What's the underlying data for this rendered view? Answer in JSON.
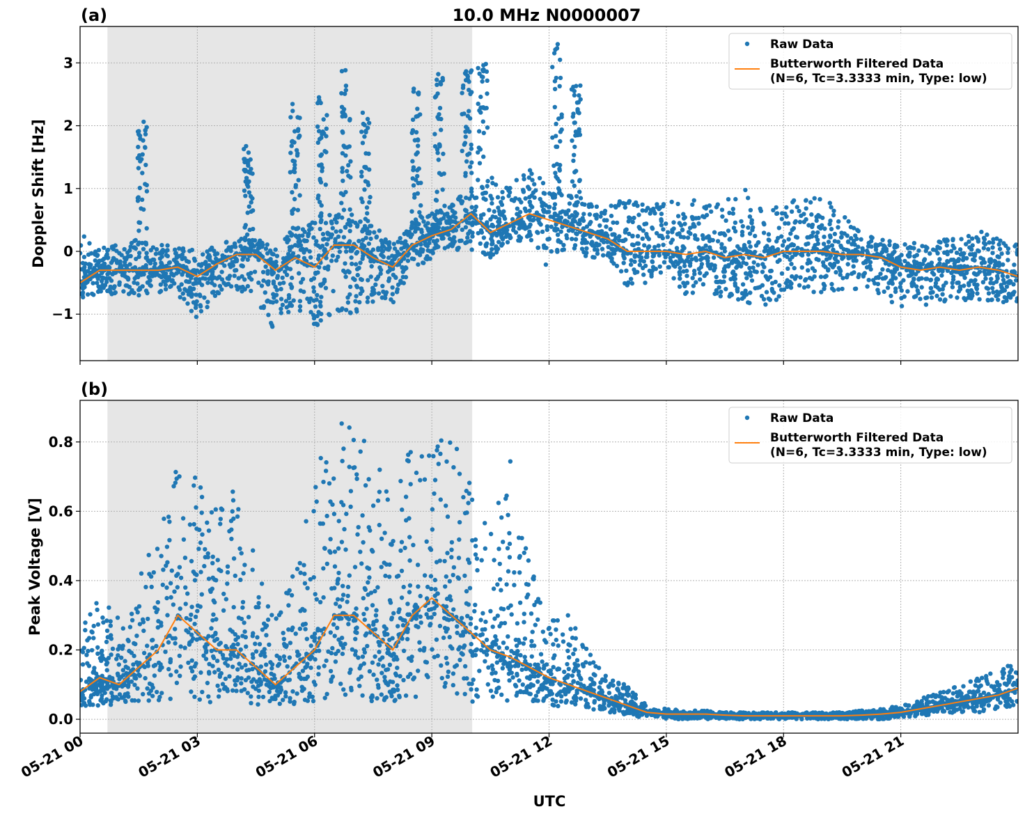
{
  "chart_data": [
    {
      "type": "scatter",
      "panel_label": "(a)",
      "title": "10.0 MHz N0000007",
      "xlabel": "",
      "ylabel": "Doppler Shift [Hz]",
      "xlim_hours_utc": [
        0,
        24
      ],
      "ylim": [
        -1.74,
        3.58
      ],
      "yticks": [
        -1,
        0,
        1,
        2,
        3
      ],
      "ytick_labels": [
        "−1",
        "0",
        "1",
        "2",
        "3"
      ],
      "grid": true,
      "legend_position": "top-right",
      "shaded_interval_utc": [
        "05-21 00:42",
        "05-21 10:02"
      ],
      "colors": {
        "raw": "#1f77b4",
        "filtered": "#ff7f0e",
        "shade": "#e6e6e6"
      },
      "legend": {
        "raw": "Raw Data",
        "filtered_line1": "Butterworth Filtered Data",
        "filtered_line2": "(N=6, Tc=3.3333 min, Type: low)"
      },
      "x_hours": [
        0,
        0.5,
        1,
        1.5,
        2,
        2.5,
        3,
        3.5,
        4,
        4.5,
        5,
        5.5,
        6,
        6.5,
        7,
        7.5,
        8,
        8.5,
        9,
        9.5,
        10,
        10.5,
        11,
        11.5,
        12,
        12.5,
        13,
        13.5,
        14,
        14.5,
        15,
        15.5,
        16,
        16.5,
        17,
        17.5,
        18,
        18.5,
        19,
        19.5,
        20,
        20.5,
        21,
        21.5,
        22,
        22.5,
        23,
        23.5,
        24
      ],
      "filtered": [
        -0.5,
        -0.3,
        -0.3,
        -0.3,
        -0.3,
        -0.25,
        -0.4,
        -0.2,
        -0.05,
        -0.05,
        -0.3,
        -0.1,
        -0.25,
        0.1,
        0.1,
        -0.1,
        -0.25,
        0.1,
        0.25,
        0.35,
        0.6,
        0.3,
        0.45,
        0.6,
        0.5,
        0.4,
        0.3,
        0.2,
        0.0,
        0.0,
        0.0,
        -0.05,
        0.0,
        -0.1,
        -0.05,
        -0.1,
        0.0,
        0.0,
        0.0,
        -0.05,
        -0.05,
        -0.1,
        -0.25,
        -0.3,
        -0.25,
        -0.3,
        -0.25,
        -0.3,
        -0.4
      ],
      "raw_min": [
        -0.85,
        -0.65,
        -0.7,
        -0.7,
        -0.65,
        -0.7,
        -1.1,
        -0.7,
        -0.6,
        -0.8,
        -1.3,
        -0.9,
        -1.2,
        -1.0,
        -1.0,
        -0.9,
        -0.85,
        -0.3,
        -0.1,
        0.0,
        0.0,
        -0.1,
        0.1,
        0.2,
        -0.3,
        0.0,
        -0.1,
        -0.1,
        -0.6,
        -0.5,
        -0.3,
        -0.7,
        -0.6,
        -0.8,
        -0.8,
        -0.9,
        -0.7,
        -0.6,
        -0.7,
        -0.6,
        -0.6,
        -0.7,
        -0.9,
        -0.9,
        -0.8,
        -0.8,
        -0.8,
        -0.8,
        -0.9
      ],
      "raw_max": [
        0.3,
        0.1,
        0.1,
        0.2,
        0.1,
        0.1,
        0.0,
        0.1,
        0.2,
        0.2,
        0.1,
        0.4,
        0.5,
        0.6,
        0.6,
        0.4,
        0.2,
        0.5,
        0.6,
        0.8,
        1.0,
        1.2,
        1.1,
        1.3,
        1.1,
        0.9,
        0.8,
        0.7,
        0.9,
        0.7,
        0.9,
        0.9,
        0.8,
        0.8,
        1.1,
        0.6,
        0.8,
        0.9,
        0.9,
        0.6,
        0.3,
        0.2,
        0.2,
        0.1,
        0.2,
        0.2,
        0.4,
        0.2,
        0.1
      ],
      "spikes": [
        {
          "x": 1.6,
          "max": 2.2
        },
        {
          "x": 4.3,
          "max": 1.7
        },
        {
          "x": 5.5,
          "max": 2.4
        },
        {
          "x": 6.2,
          "max": 2.5
        },
        {
          "x": 6.8,
          "max": 2.9
        },
        {
          "x": 7.3,
          "max": 2.4
        },
        {
          "x": 8.6,
          "max": 2.6
        },
        {
          "x": 9.2,
          "max": 2.9
        },
        {
          "x": 9.9,
          "max": 3.0
        },
        {
          "x": 10.3,
          "max": 3.0
        },
        {
          "x": 12.2,
          "max": 3.35
        },
        {
          "x": 12.7,
          "max": 2.7
        }
      ]
    },
    {
      "type": "scatter",
      "panel_label": "(b)",
      "xlabel": "UTC",
      "ylabel": "Peak Voltage [V]",
      "xlim_hours_utc": [
        0,
        24
      ],
      "ylim": [
        -0.04,
        0.92
      ],
      "yticks": [
        0.0,
        0.2,
        0.4,
        0.6,
        0.8
      ],
      "ytick_labels": [
        "0.0",
        "0.2",
        "0.4",
        "0.6",
        "0.8"
      ],
      "xticks_hours": [
        0,
        3,
        6,
        9,
        12,
        15,
        18,
        21
      ],
      "xtick_labels": [
        "05-21 00",
        "05-21 03",
        "05-21 06",
        "05-21 09",
        "05-21 12",
        "05-21 15",
        "05-21 18",
        "05-21 21"
      ],
      "grid": true,
      "legend_position": "top-right",
      "shaded_interval_utc": [
        "05-21 00:42",
        "05-21 10:02"
      ],
      "legend": {
        "raw": "Raw Data",
        "filtered_line1": "Butterworth Filtered Data",
        "filtered_line2": "(N=6, Tc=3.3333 min, Type: low)"
      },
      "x_hours": [
        0,
        0.5,
        1,
        1.5,
        2,
        2.5,
        3,
        3.5,
        4,
        4.5,
        5,
        5.5,
        6,
        6.5,
        7,
        7.5,
        8,
        8.5,
        9,
        9.5,
        10,
        10.5,
        11,
        11.5,
        12,
        12.5,
        13,
        13.5,
        14,
        14.5,
        15,
        15.5,
        16,
        16.5,
        17,
        17.5,
        18,
        18.5,
        19,
        19.5,
        20,
        20.5,
        21,
        21.5,
        22,
        22.5,
        23,
        23.5,
        24
      ],
      "filtered": [
        0.08,
        0.12,
        0.1,
        0.15,
        0.2,
        0.3,
        0.25,
        0.2,
        0.2,
        0.15,
        0.1,
        0.15,
        0.2,
        0.3,
        0.3,
        0.25,
        0.2,
        0.3,
        0.35,
        0.3,
        0.25,
        0.2,
        0.18,
        0.15,
        0.12,
        0.1,
        0.08,
        0.06,
        0.04,
        0.02,
        0.015,
        0.015,
        0.015,
        0.012,
        0.01,
        0.01,
        0.01,
        0.01,
        0.01,
        0.01,
        0.012,
        0.015,
        0.02,
        0.03,
        0.04,
        0.05,
        0.06,
        0.07,
        0.09
      ],
      "raw_min": [
        0.03,
        0.04,
        0.04,
        0.05,
        0.05,
        0.06,
        0.05,
        0.04,
        0.05,
        0.04,
        0.04,
        0.04,
        0.05,
        0.05,
        0.06,
        0.05,
        0.05,
        0.06,
        0.05,
        0.05,
        0.05,
        0.05,
        0.05,
        0.04,
        0.04,
        0.03,
        0.03,
        0.02,
        0.01,
        0.005,
        0.0,
        0.0,
        0.0,
        0.0,
        0.0,
        0.0,
        0.0,
        0.0,
        0.0,
        0.0,
        0.0,
        0.0,
        0.005,
        0.01,
        0.015,
        0.02,
        0.02,
        0.03,
        0.04
      ],
      "raw_max": [
        0.3,
        0.35,
        0.3,
        0.45,
        0.5,
        0.77,
        0.7,
        0.6,
        0.67,
        0.55,
        0.3,
        0.45,
        0.7,
        0.87,
        0.85,
        0.78,
        0.65,
        0.8,
        0.82,
        0.83,
        0.7,
        0.55,
        0.75,
        0.45,
        0.3,
        0.3,
        0.2,
        0.12,
        0.1,
        0.04,
        0.03,
        0.025,
        0.025,
        0.02,
        0.02,
        0.02,
        0.02,
        0.02,
        0.02,
        0.02,
        0.025,
        0.03,
        0.04,
        0.06,
        0.08,
        0.1,
        0.12,
        0.14,
        0.17
      ]
    }
  ]
}
